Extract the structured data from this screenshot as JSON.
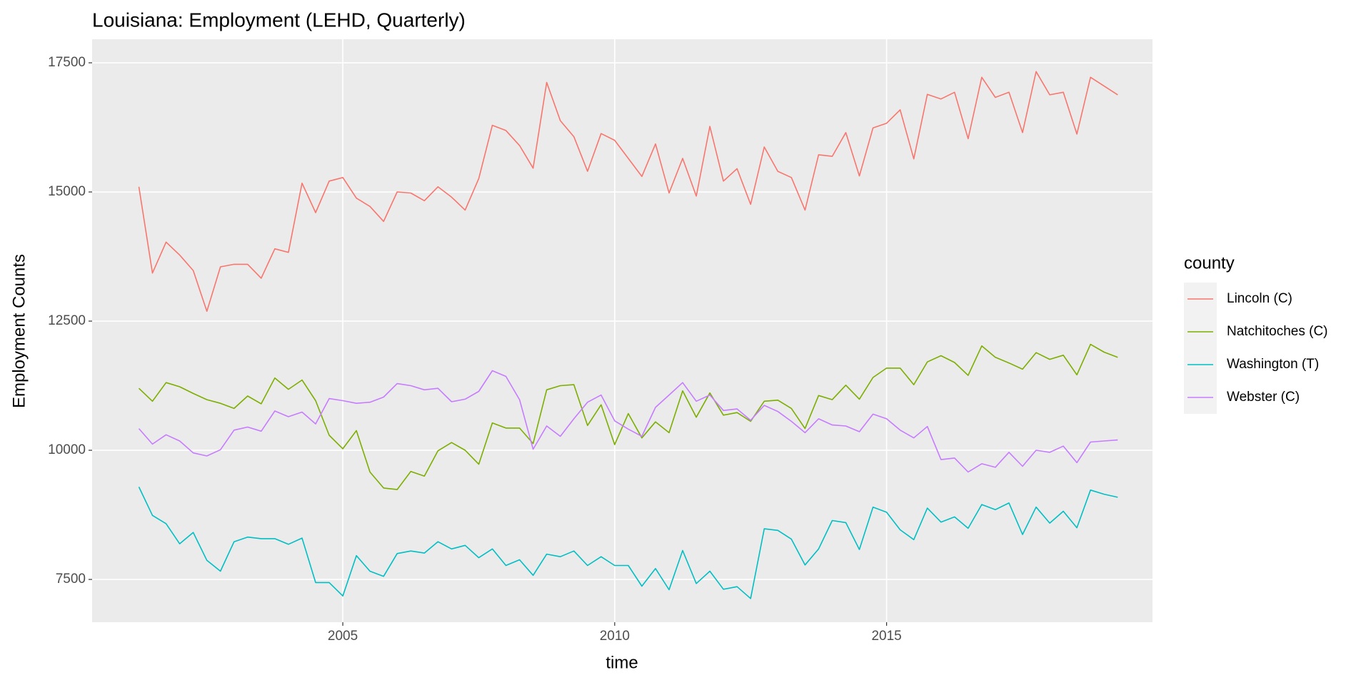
{
  "chart_data": {
    "type": "line",
    "title": "Louisiana: Employment (LEHD, Quarterly)",
    "x_label": "time",
    "y_label": "Employment Counts",
    "legend_title": "county",
    "legend_position": "right",
    "grid": true,
    "xlim": [
      2000.39,
      2019.89
    ],
    "ylim": [
      6672,
      17956
    ],
    "xticks": [
      2005,
      2010,
      2015
    ],
    "yticks": [
      7500,
      10000,
      12500,
      15000,
      17500
    ],
    "x": [
      2001.25,
      2001.5,
      2001.75,
      2002,
      2002.25,
      2002.5,
      2002.75,
      2003,
      2003.25,
      2003.5,
      2003.75,
      2004,
      2004.25,
      2004.5,
      2004.75,
      2005,
      2005.25,
      2005.5,
      2005.75,
      2006,
      2006.25,
      2006.5,
      2006.75,
      2007,
      2007.25,
      2007.5,
      2007.75,
      2008,
      2008.25,
      2008.5,
      2008.75,
      2009,
      2009.25,
      2009.5,
      2009.75,
      2010,
      2010.25,
      2010.5,
      2010.75,
      2011,
      2011.25,
      2011.5,
      2011.75,
      2012,
      2012.25,
      2012.5,
      2012.75,
      2013,
      2013.25,
      2013.5,
      2013.75,
      2014,
      2014.25,
      2014.5,
      2014.75,
      2015,
      2015.25,
      2015.5,
      2015.75,
      2016,
      2016.25,
      2016.5,
      2016.75,
      2017,
      2017.25,
      2017.5,
      2017.75,
      2018,
      2018.25,
      2018.5,
      2018.75,
      2019,
      2019.25
    ],
    "series": [
      {
        "name": "Lincoln (C)",
        "color": "#F8766D",
        "values": [
          15100,
          13430,
          14030,
          13780,
          13480,
          12690,
          13550,
          13600,
          13600,
          13330,
          13900,
          13830,
          15170,
          14600,
          15210,
          15280,
          14880,
          14720,
          14430,
          15000,
          14980,
          14830,
          15100,
          14900,
          14650,
          15260,
          16290,
          16190,
          15900,
          15460,
          17120,
          16380,
          16070,
          15400,
          16130,
          16000,
          15650,
          15300,
          15930,
          14980,
          15650,
          14920,
          16270,
          15210,
          15450,
          14760,
          15870,
          15400,
          15280,
          14650,
          15720,
          15690,
          16150,
          15310,
          16240,
          16330,
          16590,
          15640,
          16890,
          16800,
          16930,
          16030,
          17220,
          16830,
          16930,
          16150,
          17330,
          16880,
          16930,
          16120,
          17220,
          17050,
          16880
        ]
      },
      {
        "name": "Natchitoches (C)",
        "color": "#7CAE00",
        "values": [
          11200,
          10950,
          11310,
          11230,
          11100,
          10980,
          10910,
          10810,
          11050,
          10900,
          11400,
          11180,
          11360,
          10960,
          10290,
          10030,
          10380,
          9580,
          9270,
          9240,
          9590,
          9500,
          9990,
          10150,
          10000,
          9730,
          10530,
          10430,
          10430,
          10130,
          11170,
          11250,
          11270,
          10480,
          10880,
          10110,
          10710,
          10240,
          10550,
          10340,
          11150,
          10640,
          11110,
          10680,
          10730,
          10560,
          10950,
          10970,
          10810,
          10420,
          11060,
          10980,
          11260,
          10990,
          11410,
          11590,
          11590,
          11270,
          11710,
          11830,
          11700,
          11450,
          12020,
          11800,
          11690,
          11570,
          11890,
          11760,
          11840,
          11460,
          12050,
          11900,
          11800
        ]
      },
      {
        "name": "Washington (T)",
        "color": "#00BFC4",
        "values": [
          9290,
          8740,
          8580,
          8190,
          8410,
          7870,
          7660,
          8230,
          8320,
          8290,
          8290,
          8180,
          8300,
          7440,
          7440,
          7180,
          7960,
          7660,
          7560,
          8000,
          8050,
          8010,
          8230,
          8090,
          8160,
          7920,
          8090,
          7770,
          7880,
          7580,
          7990,
          7940,
          8050,
          7770,
          7940,
          7770,
          7770,
          7370,
          7710,
          7300,
          8060,
          7420,
          7660,
          7310,
          7360,
          7130,
          8480,
          8450,
          8280,
          7780,
          8090,
          8640,
          8600,
          8080,
          8900,
          8800,
          8460,
          8270,
          8880,
          8610,
          8710,
          8490,
          8950,
          8850,
          8980,
          8370,
          8900,
          8590,
          8820,
          8500,
          9230,
          9150,
          9090
        ]
      },
      {
        "name": "Webster (C)",
        "color": "#C77CFF",
        "values": [
          10420,
          10120,
          10300,
          10180,
          9950,
          9890,
          10010,
          10390,
          10450,
          10370,
          10760,
          10650,
          10740,
          10510,
          11000,
          10960,
          10910,
          10930,
          11030,
          11290,
          11250,
          11170,
          11200,
          10940,
          10990,
          11140,
          11540,
          11430,
          10980,
          10020,
          10470,
          10270,
          10610,
          10930,
          11070,
          10570,
          10410,
          10270,
          10830,
          11070,
          11310,
          10950,
          11070,
          10770,
          10800,
          10580,
          10870,
          10750,
          10560,
          10340,
          10610,
          10490,
          10470,
          10360,
          10700,
          10610,
          10390,
          10240,
          10460,
          9820,
          9850,
          9580,
          9740,
          9670,
          9960,
          9690,
          10000,
          9960,
          10080,
          9760,
          10160,
          10180,
          10200
        ]
      }
    ]
  }
}
